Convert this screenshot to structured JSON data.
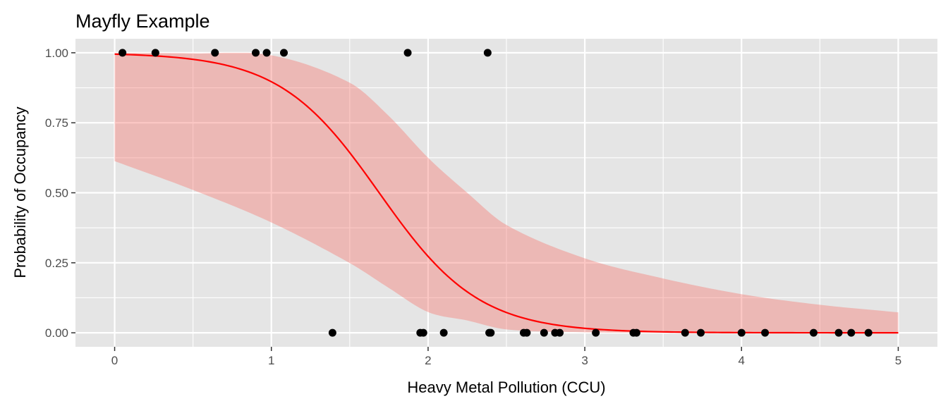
{
  "chart_data": {
    "type": "scatter",
    "title": "Mayfly Example",
    "xlabel": "Heavy Metal Pollution (CCU)",
    "ylabel": "Probability of Occupancy",
    "xlim": [
      -0.25,
      5.25
    ],
    "ylim": [
      -0.05,
      1.05
    ],
    "x_ticks": [
      0,
      1,
      2,
      3,
      4,
      5
    ],
    "x_tick_labels": [
      "0",
      "1",
      "2",
      "3",
      "4",
      "5"
    ],
    "y_ticks": [
      0,
      0.25,
      0.5,
      0.75,
      1
    ],
    "y_tick_labels": [
      "0.00",
      "0.25",
      "0.50",
      "0.75",
      "1.00"
    ],
    "grid": true,
    "points": {
      "x": [
        0.05,
        0.26,
        0.64,
        0.9,
        0.97,
        1.08,
        1.87,
        2.38,
        1.39,
        1.95,
        1.97,
        2.1,
        2.39,
        2.4,
        2.61,
        2.63,
        2.74,
        2.81,
        2.84,
        3.07,
        3.31,
        3.33,
        3.64,
        3.74,
        4.0,
        4.15,
        4.46,
        4.62,
        4.7,
        4.81
      ],
      "y": [
        1,
        1,
        1,
        1,
        1,
        1,
        1,
        1,
        0,
        0,
        0,
        0,
        0,
        0,
        0,
        0,
        0,
        0,
        0,
        0,
        0,
        0,
        0,
        0,
        0,
        0,
        0,
        0,
        0,
        0
      ],
      "color": "#000000"
    },
    "fit": {
      "model": "logistic",
      "intercept": 5.3,
      "slope": -3.14,
      "x_range": [
        0,
        5
      ],
      "color": "#FF0000"
    },
    "ribbon": {
      "x": [
        0,
        0.5,
        1,
        1.5,
        1.75,
        2,
        2.25,
        2.5,
        3,
        3.5,
        4,
        4.5,
        5
      ],
      "lower": [
        0.613,
        0.51,
        0.394,
        0.249,
        0.16,
        0.074,
        0.044,
        0.012,
        0.002,
        0.0,
        0.0,
        0.0,
        0.0
      ],
      "upper": [
        1.0,
        0.998,
        0.991,
        0.893,
        0.774,
        0.625,
        0.5,
        0.385,
        0.266,
        0.194,
        0.138,
        0.1,
        0.073
      ],
      "color": "#F8766D"
    },
    "panel_background": "#E5E5E5"
  }
}
